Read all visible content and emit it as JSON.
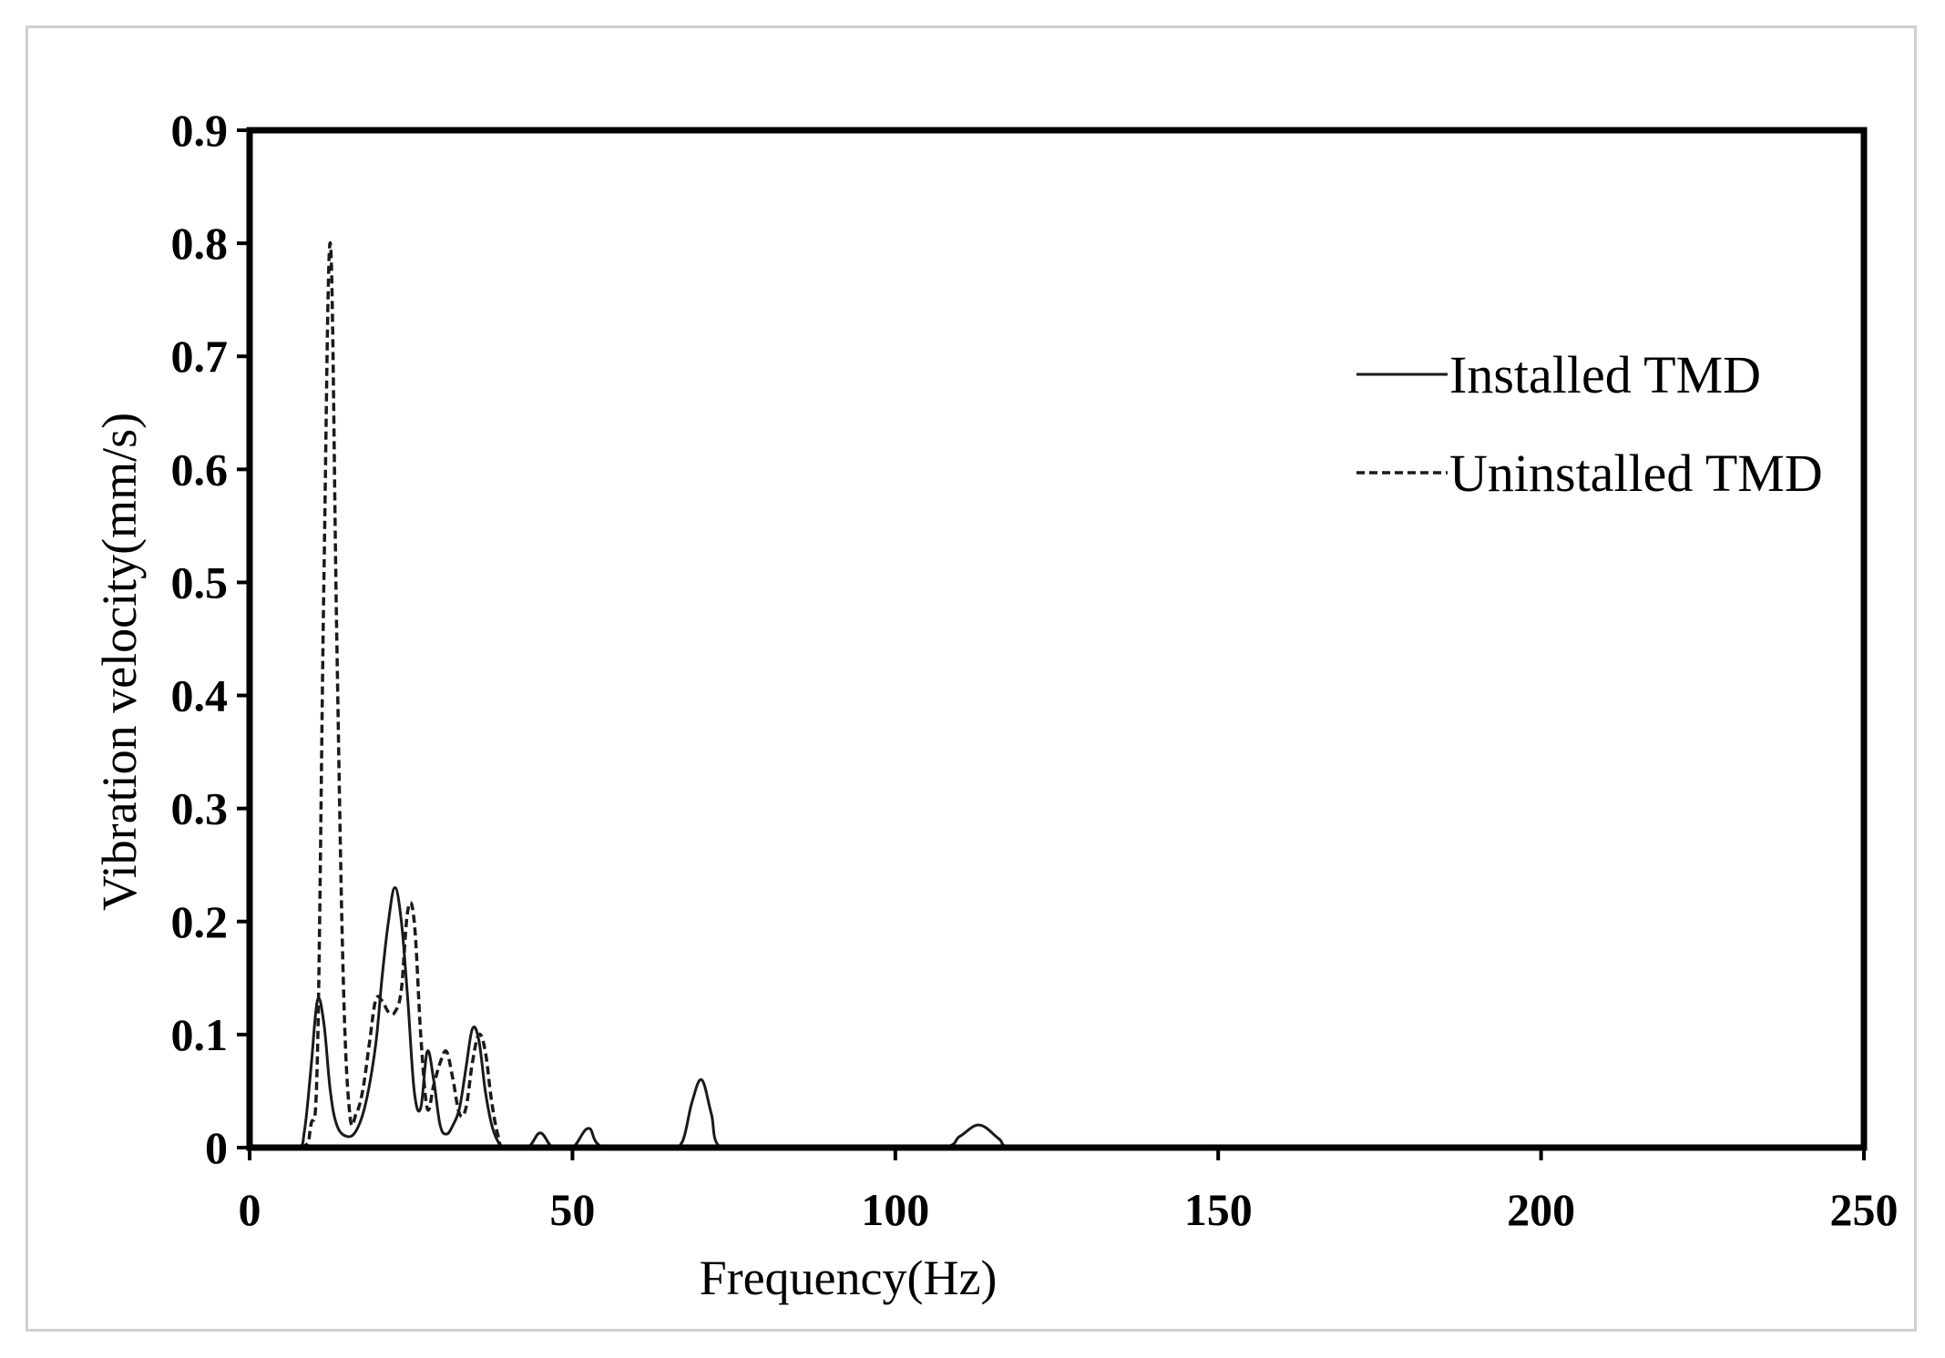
{
  "chart_data": {
    "type": "line",
    "title": "",
    "xlabel": "Frequency(Hz)",
    "ylabel": "Vibration velocity(mm/s)",
    "xlim": [
      0,
      250
    ],
    "ylim": [
      0,
      0.9
    ],
    "xticks": [
      "0",
      "50",
      "100",
      "150",
      "200",
      "250"
    ],
    "yticks": [
      "0",
      "0.1",
      "0.2",
      "0.3",
      "0.4",
      "0.5",
      "0.6",
      "0.7",
      "0.8",
      "0.9"
    ],
    "grid": false,
    "legend_position": "top-right",
    "series": [
      {
        "name": "Installed TMD",
        "line_style": "solid",
        "color": "#1a1a1a",
        "x": [
          0,
          7.5,
          8.5,
          9.5,
          10.5,
          11.5,
          12.5,
          13.5,
          15,
          16.5,
          18,
          19.5,
          20.5,
          21.5,
          22.5,
          23.5,
          24.5,
          25.5,
          26.5,
          27.5,
          28.5,
          29.5,
          30.5,
          31.5,
          32.5,
          33.5,
          34.5,
          35.5,
          36.5,
          37.5,
          38.5,
          39.5,
          43,
          45,
          47,
          50,
          52.5,
          55,
          65,
          67,
          68.5,
          70,
          71.5,
          73,
          107,
          110,
          113,
          116,
          118,
          250
        ],
        "y": [
          0,
          0,
          0.015,
          0.07,
          0.13,
          0.11,
          0.05,
          0.02,
          0.01,
          0.015,
          0.04,
          0.09,
          0.15,
          0.2,
          0.23,
          0.2,
          0.13,
          0.05,
          0.035,
          0.085,
          0.06,
          0.02,
          0.012,
          0.02,
          0.035,
          0.07,
          0.105,
          0.095,
          0.05,
          0.02,
          0.005,
          0,
          0,
          0.013,
          0,
          0,
          0.017,
          0,
          0,
          0.005,
          0.04,
          0.06,
          0.03,
          0,
          0,
          0.01,
          0.02,
          0.008,
          0,
          0
        ]
      },
      {
        "name": "Uninstalled TMD",
        "line_style": "dashed",
        "color": "#1a1a1a",
        "x": [
          0,
          8,
          9.5,
          10.5,
          11.5,
          12.5,
          13.5,
          14.5,
          15.5,
          16.5,
          17.5,
          18.5,
          19.5,
          20.5,
          21.5,
          22.5,
          23.5,
          24.5,
          25.5,
          26.5,
          27.5,
          28.5,
          29.5,
          30.5,
          31.5,
          32.5,
          33.5,
          34.5,
          35.5,
          36.5,
          37.5,
          38.5,
          39.5,
          250
        ],
        "y": [
          0,
          0,
          0.02,
          0.08,
          0.5,
          0.8,
          0.45,
          0.15,
          0.03,
          0.03,
          0.05,
          0.09,
          0.13,
          0.13,
          0.12,
          0.12,
          0.14,
          0.21,
          0.2,
          0.1,
          0.035,
          0.055,
          0.075,
          0.085,
          0.06,
          0.03,
          0.035,
          0.075,
          0.1,
          0.085,
          0.04,
          0.01,
          0,
          0
        ]
      }
    ]
  }
}
